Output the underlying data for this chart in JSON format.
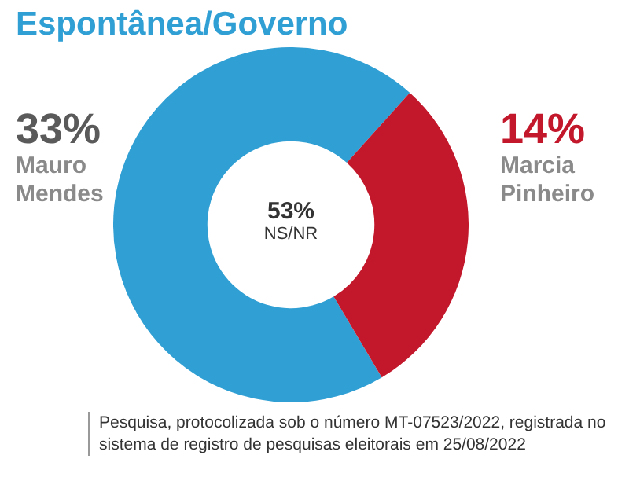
{
  "chart_data": {
    "type": "donut",
    "title": "Espontânea/Governo",
    "categories": [
      "Mauro Mendes",
      "Marcia Pinheiro"
    ],
    "values": [
      33,
      14
    ],
    "colors": [
      "#2f9fd4",
      "#c3172b"
    ],
    "value_labels": [
      "33%",
      "14%"
    ],
    "legend": false,
    "annotations": [
      "53%",
      "NS/NR",
      "Pesquisa, protocolizada sob o número MT-07523/2022, registrada no sistema de registro de pesquisas eleitorais em 25/08/2022"
    ]
  }
}
